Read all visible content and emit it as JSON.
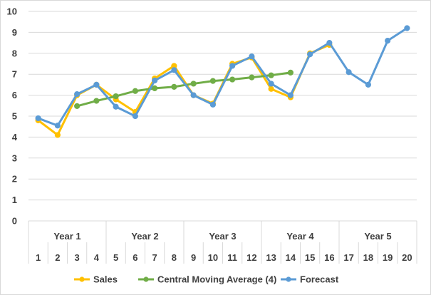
{
  "chart_data": {
    "type": "line",
    "x": [
      "1",
      "2",
      "3",
      "4",
      "5",
      "6",
      "7",
      "8",
      "9",
      "10",
      "11",
      "12",
      "13",
      "14",
      "15",
      "16",
      "17",
      "18",
      "19",
      "20"
    ],
    "x_groups": [
      {
        "label": "Year 1",
        "start": 1,
        "end": 4
      },
      {
        "label": "Year 2",
        "start": 5,
        "end": 8
      },
      {
        "label": "Year 3",
        "start": 9,
        "end": 12
      },
      {
        "label": "Year 4",
        "start": 13,
        "end": 16
      },
      {
        "label": "Year 5",
        "start": 17,
        "end": 20
      }
    ],
    "ylim": [
      0,
      10
    ],
    "yticks": [
      "0",
      "1",
      "2",
      "3",
      "4",
      "5",
      "6",
      "7",
      "8",
      "9",
      "10"
    ],
    "grid": true,
    "legend_position": "bottom",
    "series": [
      {
        "name": "Sales",
        "color": "#ffc000",
        "values": [
          4.8,
          4.1,
          6.0,
          6.5,
          5.8,
          5.2,
          6.8,
          7.4,
          6.0,
          5.6,
          7.5,
          7.8,
          6.3,
          5.9,
          8.0,
          8.4,
          null,
          null,
          null,
          null
        ]
      },
      {
        "name": "Central Moving Average (4)",
        "color": "#70ad47",
        "values": [
          null,
          null,
          5.48,
          5.73,
          5.95,
          6.2,
          6.33,
          6.4,
          6.55,
          6.68,
          6.75,
          6.85,
          6.95,
          7.08,
          null,
          null,
          null,
          null,
          null,
          null
        ]
      },
      {
        "name": "Forecast",
        "color": "#5b9bd5",
        "values": [
          4.9,
          4.55,
          6.05,
          6.5,
          5.45,
          5.0,
          6.7,
          7.2,
          6.0,
          5.55,
          7.4,
          7.85,
          6.55,
          6.0,
          7.95,
          8.5,
          7.1,
          6.5,
          8.6,
          9.2
        ]
      }
    ]
  }
}
